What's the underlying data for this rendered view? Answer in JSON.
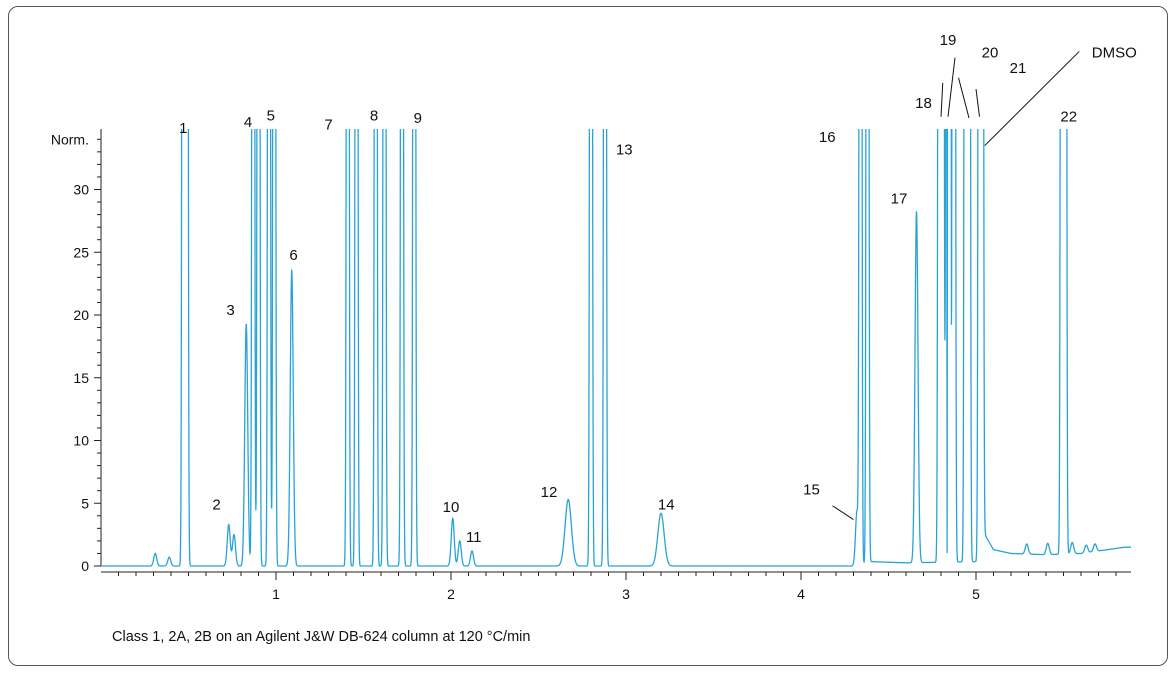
{
  "chart_data": {
    "type": "line",
    "ylabel": "Norm.",
    "xlim": [
      0,
      5.9
    ],
    "ylim": [
      0,
      35
    ],
    "x_ticks": [
      1,
      2,
      3,
      4,
      5
    ],
    "y_ticks": [
      0,
      5,
      10,
      15,
      20,
      25,
      30
    ],
    "line_color": "#29a3d6",
    "caption": "Class 1, 2A, 2B on an Agilent J&W DB-624 column at 120 °C/min",
    "baseline": [
      [
        0.0,
        0.0
      ],
      [
        0.5,
        0.0
      ],
      [
        1.5,
        0.0
      ],
      [
        2.3,
        0.0
      ],
      [
        4.3,
        0.0
      ],
      [
        4.4,
        0.35
      ],
      [
        4.6,
        0.25
      ],
      [
        5.0,
        0.35
      ],
      [
        5.05,
        2.5
      ],
      [
        5.1,
        1.3
      ],
      [
        5.2,
        1.0
      ],
      [
        5.4,
        0.9
      ],
      [
        5.6,
        1.0
      ],
      [
        5.85,
        1.5
      ]
    ],
    "peaks": [
      {
        "label": "",
        "rt": 0.31,
        "height": 1.0
      },
      {
        "label": "",
        "rt": 0.39,
        "height": 0.7
      },
      {
        "label": "1",
        "rt": 0.47,
        "height": 200
      },
      {
        "label": "1",
        "rt": 0.49,
        "height": 200
      },
      {
        "label": "2",
        "rt": 0.73,
        "height": 3.3
      },
      {
        "label": "",
        "rt": 0.76,
        "height": 2.5
      },
      {
        "label": "3",
        "rt": 0.83,
        "height": 19.3
      },
      {
        "label": "4",
        "rt": 0.87,
        "height": 200
      },
      {
        "label": "4",
        "rt": 0.9,
        "height": 200
      },
      {
        "label": "5",
        "rt": 0.96,
        "height": 200
      },
      {
        "label": "5",
        "rt": 0.99,
        "height": 200
      },
      {
        "label": "6",
        "rt": 1.09,
        "height": 23.6
      },
      {
        "label": "7",
        "rt": 1.41,
        "height": 200
      },
      {
        "label": "7",
        "rt": 1.46,
        "height": 200
      },
      {
        "label": "8",
        "rt": 1.57,
        "height": 200
      },
      {
        "label": "8",
        "rt": 1.62,
        "height": 200
      },
      {
        "label": "9",
        "rt": 1.72,
        "height": 200
      },
      {
        "label": "9",
        "rt": 1.79,
        "height": 200
      },
      {
        "label": "10",
        "rt": 2.01,
        "height": 3.8
      },
      {
        "label": "",
        "rt": 2.05,
        "height": 2.0
      },
      {
        "label": "11",
        "rt": 2.12,
        "height": 1.2
      },
      {
        "label": "12",
        "rt": 2.67,
        "height": 5.3
      },
      {
        "label": "13",
        "rt": 2.8,
        "height": 200
      },
      {
        "label": "13",
        "rt": 2.88,
        "height": 200
      },
      {
        "label": "14",
        "rt": 3.2,
        "height": 4.2
      },
      {
        "label": "15",
        "rt": 4.32,
        "height": 4.3
      },
      {
        "label": "16",
        "rt": 4.34,
        "height": 200
      },
      {
        "label": "16",
        "rt": 4.38,
        "height": 200
      },
      {
        "label": "17",
        "rt": 4.66,
        "height": 28.0
      },
      {
        "label": "18",
        "rt": 4.79,
        "height": 200
      },
      {
        "label": "18",
        "rt": 4.81,
        "height": 200
      },
      {
        "label": "19",
        "rt": 4.835,
        "height": 200
      },
      {
        "label": "19",
        "rt": 4.855,
        "height": 200
      },
      {
        "label": "",
        "rt": 4.875,
        "height": 200
      },
      {
        "label": "20",
        "rt": 4.94,
        "height": 200
      },
      {
        "label": "20",
        "rt": 4.96,
        "height": 200
      },
      {
        "label": "21",
        "rt": 5.02,
        "height": 200
      },
      {
        "label": "DMSO",
        "rt": 5.035,
        "height": 200
      },
      {
        "label": "",
        "rt": 5.29,
        "height": 0.8
      },
      {
        "label": "",
        "rt": 5.41,
        "height": 0.9
      },
      {
        "label": "",
        "rt": 5.55,
        "height": 0.9
      },
      {
        "label": "",
        "rt": 5.63,
        "height": 0.6
      },
      {
        "label": "",
        "rt": 5.68,
        "height": 0.6
      },
      {
        "label": "22",
        "rt": 5.49,
        "height": 200
      },
      {
        "label": "22",
        "rt": 5.51,
        "height": 200
      }
    ],
    "dips": [
      {
        "rt": 4.835,
        "y": 1.0
      },
      {
        "rt": 4.86,
        "y": 18.0
      }
    ],
    "peak_labels": [
      {
        "text": "1",
        "rt": 0.47,
        "y_val": 34.5
      },
      {
        "text": "2",
        "rt": 0.66,
        "y_val": 4.5
      },
      {
        "text": "3",
        "rt": 0.74,
        "y_val": 20.0
      },
      {
        "text": "4",
        "rt": 0.84,
        "y_val": 35.0
      },
      {
        "text": "5",
        "rt": 0.97,
        "y_val": 35.5
      },
      {
        "text": "6",
        "rt": 1.1,
        "y_val": 24.4
      },
      {
        "text": "7",
        "rt": 1.3,
        "y_val": 34.8
      },
      {
        "text": "8",
        "rt": 1.56,
        "y_val": 35.5
      },
      {
        "text": "9",
        "rt": 1.81,
        "y_val": 35.3
      },
      {
        "text": "10",
        "rt": 2.0,
        "y_val": 4.3
      },
      {
        "text": "11",
        "rt": 2.13,
        "y_val": 1.9
      },
      {
        "text": "12",
        "rt": 2.56,
        "y_val": 5.5
      },
      {
        "text": "13",
        "rt": 2.99,
        "y_val": 32.8
      },
      {
        "text": "14",
        "rt": 3.23,
        "y_val": 4.5
      },
      {
        "text": "15",
        "rt": 4.06,
        "y_val": 5.7
      },
      {
        "text": "16",
        "rt": 4.15,
        "y_val": 33.8
      },
      {
        "text": "17",
        "rt": 4.56,
        "y_val": 28.9
      },
      {
        "text": "18",
        "rt": 4.7,
        "y_val": 36.5
      },
      {
        "text": "19",
        "rt": 4.84,
        "y_val": 41.5
      },
      {
        "text": "20",
        "rt": 5.08,
        "y_val": 40.5
      },
      {
        "text": "21",
        "rt": 5.24,
        "y_val": 39.3
      },
      {
        "text": "DMSO",
        "rt": 5.79,
        "y_val": 40.5
      },
      {
        "text": "22",
        "rt": 5.53,
        "y_val": 35.4
      }
    ],
    "leader_lines": [
      {
        "from": [
          4.81,
          38.5
        ],
        "to": [
          4.8,
          35.8
        ]
      },
      {
        "from": [
          4.88,
          40.5
        ],
        "to": [
          4.84,
          35.8
        ]
      },
      {
        "from": [
          4.9,
          38.9
        ],
        "to": [
          4.96,
          35.7
        ]
      },
      {
        "from": [
          5.0,
          38.0
        ],
        "to": [
          5.02,
          35.8
        ]
      },
      {
        "from": [
          5.59,
          41.0
        ],
        "to": [
          5.05,
          33.5
        ]
      },
      {
        "from": [
          4.18,
          4.8
        ],
        "to": [
          4.3,
          3.7
        ]
      }
    ]
  }
}
